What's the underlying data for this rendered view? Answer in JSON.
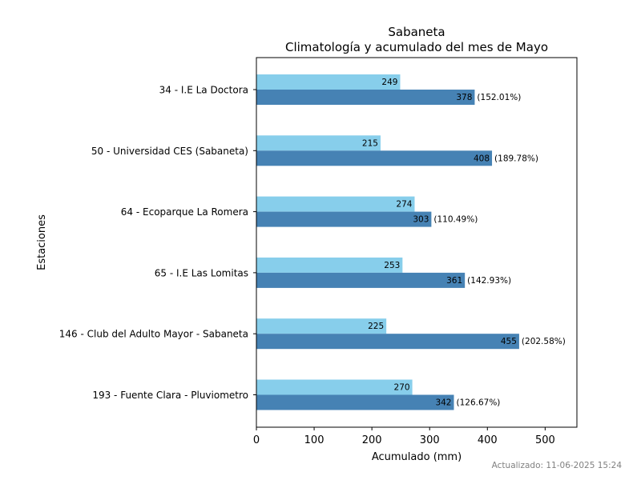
{
  "chart_data": {
    "type": "bar",
    "orientation": "horizontal",
    "title": "Sabaneta",
    "subtitle": "Climatología y acumulado del mes de Mayo",
    "xlabel": "Acumulado (mm)",
    "ylabel": "Estaciones",
    "xlim": [
      0,
      555
    ],
    "xticks": [
      0,
      100,
      200,
      300,
      400,
      500
    ],
    "grid": false,
    "categories": [
      "34 - I.E La Doctora",
      "50 - Universidad CES (Sabaneta)",
      "64 - Ecoparque La Romera",
      "65 - I.E Las Lomitas",
      "146 - Club del Adulto Mayor - Sabaneta",
      "193 - Fuente Clara - Pluviometro"
    ],
    "series": [
      {
        "color": "#87ceeb",
        "values": [
          249,
          215,
          274,
          253,
          225,
          270
        ]
      },
      {
        "color": "#4682b4",
        "values": [
          378,
          408,
          303,
          361,
          455,
          342
        ],
        "annotations": [
          "(152.01%)",
          "(189.78%)",
          "(110.49%)",
          "(142.93%)",
          "(202.58%)",
          "(126.67%)"
        ]
      }
    ]
  },
  "footer": {
    "updated": "Actualizado: 11-06-2025 15:24"
  }
}
